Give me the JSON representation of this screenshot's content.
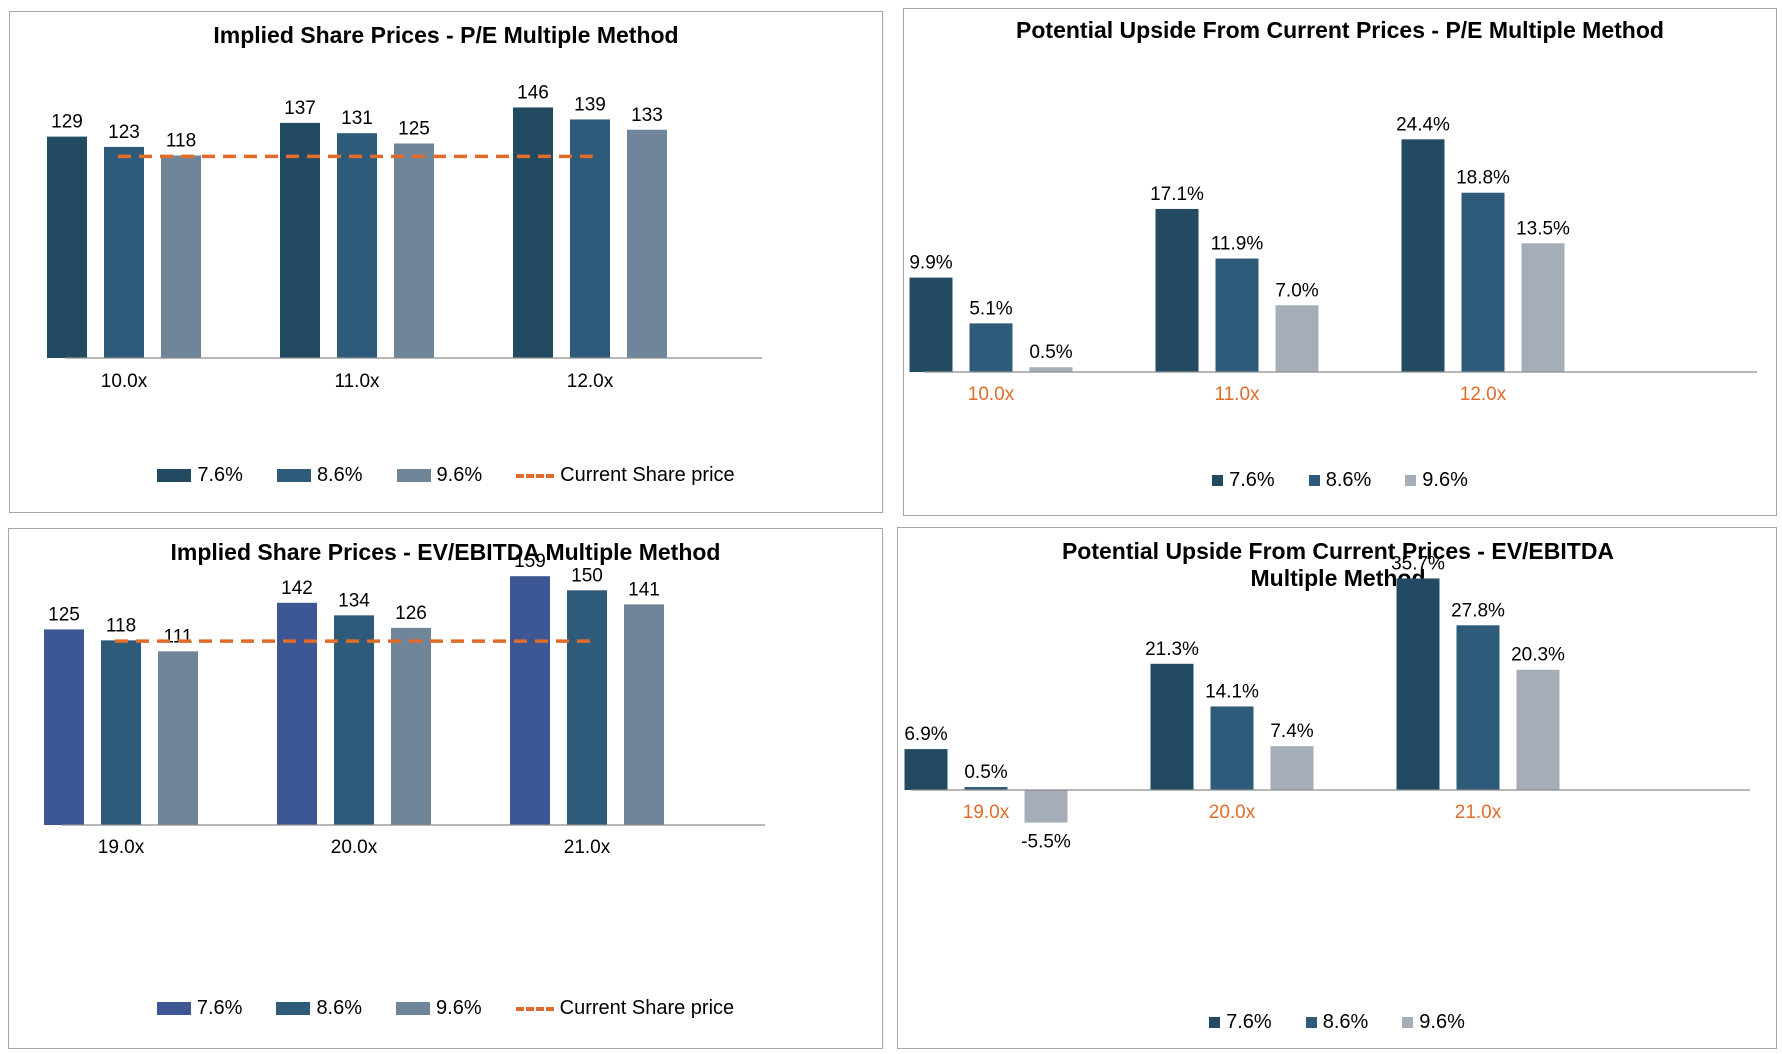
{
  "chart_data": [
    {
      "type": "bar",
      "title": "Implied Share Prices - P/E Multiple Method",
      "categories": [
        "10.0x",
        "11.0x",
        "12.0x"
      ],
      "series": [
        {
          "name": "7.6%",
          "values": [
            129,
            137,
            146
          ],
          "color": "#234a63"
        },
        {
          "name": "8.6%",
          "values": [
            123,
            131,
            139
          ],
          "color": "#2e5b7a"
        },
        {
          "name": "9.6%",
          "values": [
            118,
            125,
            133
          ],
          "color": "#6f8599"
        }
      ],
      "reference_line": {
        "name": "Current Share price",
        "value": 117.5,
        "color": "#e06c2b"
      },
      "ylim": [
        0,
        155
      ],
      "category_label_color": "#000000",
      "legend_position": "bottom",
      "grid": false
    },
    {
      "type": "bar",
      "title": "Potential Upside From Current Prices - P/E Multiple Method",
      "categories": [
        "10.0x",
        "11.0x",
        "12.0x"
      ],
      "series": [
        {
          "name": "7.6%",
          "values": [
            9.9,
            17.1,
            24.4
          ],
          "color": "#234a63",
          "labels": [
            "9.9%",
            "17.1%",
            "24.4%"
          ]
        },
        {
          "name": "8.6%",
          "values": [
            5.1,
            11.9,
            18.8
          ],
          "color": "#2e5b7a",
          "labels": [
            "5.1%",
            "11.9%",
            "18.8%"
          ]
        },
        {
          "name": "9.6%",
          "values": [
            0.5,
            7.0,
            13.5
          ],
          "color": "#a5aeb8",
          "labels": [
            "0.5%",
            "7.0%",
            "13.5%"
          ]
        }
      ],
      "ylim": [
        0,
        28
      ],
      "category_label_color": "#e06c2b",
      "legend_position": "bottom",
      "grid": false
    },
    {
      "type": "bar",
      "title": "Implied Share Prices - EV/EBITDA Multiple Method",
      "categories": [
        "19.0x",
        "20.0x",
        "21.0x"
      ],
      "series": [
        {
          "name": "7.6%",
          "values": [
            125,
            142,
            159
          ],
          "color": "#3d5694"
        },
        {
          "name": "8.6%",
          "values": [
            118,
            134,
            150
          ],
          "color": "#2e5b7a"
        },
        {
          "name": "9.6%",
          "values": [
            111,
            126,
            141
          ],
          "color": "#6f8599"
        }
      ],
      "reference_line": {
        "name": "Current Share price",
        "value": 117.5,
        "color": "#e06c2b"
      },
      "ylim": [
        0,
        170
      ],
      "category_label_color": "#000000",
      "legend_position": "bottom",
      "grid": false
    },
    {
      "type": "bar",
      "title": "Potential Upside From Current Prices - EV/EBITDA Multiple Method",
      "categories": [
        "19.0x",
        "20.0x",
        "21.0x"
      ],
      "series": [
        {
          "name": "7.6%",
          "values": [
            6.9,
            21.3,
            35.7
          ],
          "color": "#234a63",
          "labels": [
            "6.9%",
            "21.3%",
            "35.7%"
          ]
        },
        {
          "name": "8.6%",
          "values": [
            0.5,
            14.1,
            27.8
          ],
          "color": "#2e5b7a",
          "labels": [
            "0.5%",
            "14.1%",
            "27.8%"
          ]
        },
        {
          "name": "9.6%",
          "values": [
            -5.5,
            7.4,
            20.3
          ],
          "color": "#a5aeb8",
          "labels": [
            "-5.5%",
            "7.4%",
            "20.3%"
          ]
        }
      ],
      "ylim": [
        -9,
        40
      ],
      "category_label_color": "#e06c2b",
      "legend_position": "bottom",
      "grid": false
    }
  ]
}
